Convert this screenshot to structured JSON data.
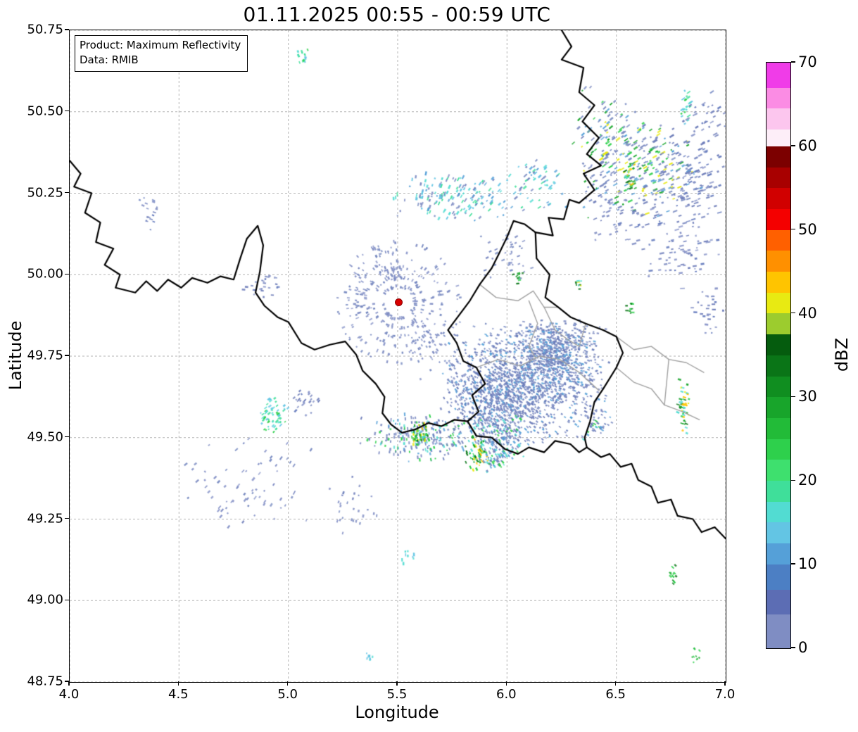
{
  "figure": {
    "title": "01.11.2025 00:55 - 00:59 UTC"
  },
  "annotation": {
    "line1": "Product: Maximum Reflectivity",
    "line2": "Data: RMIB"
  },
  "axes": {
    "x": {
      "label": "Longitude",
      "lim": [
        4.0,
        7.0
      ],
      "ticks": [
        {
          "value": 4.0,
          "label": "4.0"
        },
        {
          "value": 4.5,
          "label": "4.5"
        },
        {
          "value": 5.0,
          "label": "5.0"
        },
        {
          "value": 5.5,
          "label": "5.5"
        },
        {
          "value": 6.0,
          "label": "6.0"
        },
        {
          "value": 6.5,
          "label": "6.5"
        },
        {
          "value": 7.0,
          "label": "7.0"
        }
      ]
    },
    "y": {
      "label": "Latitude",
      "lim": [
        48.75,
        50.75
      ],
      "ticks": [
        {
          "value": 48.75,
          "label": "48.75"
        },
        {
          "value": 49.0,
          "label": "49.00"
        },
        {
          "value": 49.25,
          "label": "49.25"
        },
        {
          "value": 49.5,
          "label": "49.50"
        },
        {
          "value": 49.75,
          "label": "49.75"
        },
        {
          "value": 50.0,
          "label": "50.00"
        },
        {
          "value": 50.25,
          "label": "50.25"
        },
        {
          "value": 50.5,
          "label": "50.50"
        },
        {
          "value": 50.75,
          "label": "50.75"
        }
      ]
    },
    "grid_style": "dashed",
    "grid_color": "#b5b5b5"
  },
  "colorbar": {
    "label": "dBZ",
    "range": [
      0,
      70
    ],
    "ticks": [
      {
        "value": 0,
        "label": "0"
      },
      {
        "value": 10,
        "label": "10"
      },
      {
        "value": 20,
        "label": "20"
      },
      {
        "value": 30,
        "label": "30"
      },
      {
        "value": 40,
        "label": "40"
      },
      {
        "value": 50,
        "label": "50"
      },
      {
        "value": 60,
        "label": "60"
      },
      {
        "value": 70,
        "label": "70"
      }
    ],
    "segments": [
      {
        "from": 0,
        "to": 4,
        "color": "#7f8dc3"
      },
      {
        "from": 4,
        "to": 7,
        "color": "#5c6db4"
      },
      {
        "from": 7,
        "to": 10,
        "color": "#4c7fc4"
      },
      {
        "from": 10,
        "to": 12.5,
        "color": "#55a0d8"
      },
      {
        "from": 12.5,
        "to": 15,
        "color": "#63c5e4"
      },
      {
        "from": 15,
        "to": 17.5,
        "color": "#52dcd2"
      },
      {
        "from": 17.5,
        "to": 20,
        "color": "#3fdf9a"
      },
      {
        "from": 20,
        "to": 22.5,
        "color": "#3ee06e"
      },
      {
        "from": 22.5,
        "to": 25,
        "color": "#2ed04c"
      },
      {
        "from": 25,
        "to": 27.5,
        "color": "#22bb38"
      },
      {
        "from": 27.5,
        "to": 30,
        "color": "#18a52b"
      },
      {
        "from": 30,
        "to": 32.5,
        "color": "#108e20"
      },
      {
        "from": 32.5,
        "to": 35,
        "color": "#0a7517"
      },
      {
        "from": 35,
        "to": 37.5,
        "color": "#055c0e"
      },
      {
        "from": 37.5,
        "to": 40,
        "color": "#9ccc2e"
      },
      {
        "from": 40,
        "to": 42.5,
        "color": "#e8ea12"
      },
      {
        "from": 42.5,
        "to": 45,
        "color": "#ffc400"
      },
      {
        "from": 45,
        "to": 47.5,
        "color": "#ff9000"
      },
      {
        "from": 47.5,
        "to": 50,
        "color": "#ff6000"
      },
      {
        "from": 50,
        "to": 52.5,
        "color": "#f40000"
      },
      {
        "from": 52.5,
        "to": 55,
        "color": "#d10000"
      },
      {
        "from": 55,
        "to": 57.5,
        "color": "#a80000"
      },
      {
        "from": 57.5,
        "to": 60,
        "color": "#7c0000"
      },
      {
        "from": 60,
        "to": 62,
        "color": "#fdeef8"
      },
      {
        "from": 62,
        "to": 64.5,
        "color": "#fcc6ee"
      },
      {
        "from": 64.5,
        "to": 67,
        "color": "#fb8ce4"
      },
      {
        "from": 67,
        "to": 70,
        "color": "#f03ce8"
      }
    ]
  },
  "radar": {
    "marker": {
      "lon": 5.505,
      "lat": 49.915,
      "color": "#d80000"
    }
  },
  "palettes": {
    "slate": [
      "#7d8bc2",
      "#6e7db9",
      "#8b97ca",
      "#657bbd"
    ],
    "slateSparse": [
      "#7d8bc2",
      "#8b97ca",
      "#7487bf"
    ],
    "mass": [
      "#7487bf",
      "#6e7db9",
      "#8091c7",
      "#687cba",
      "#7d8bc2",
      "#55a0d8"
    ],
    "mixNorth": [
      "#7d8bc2",
      "#55a0d8",
      "#52dcd2",
      "#63c5e4",
      "#3fdf9a",
      "#7487bf"
    ],
    "neMix": [
      "#7d8bc2",
      "#6e7db9",
      "#55a0d8",
      "#2ed04c",
      "#18a52b",
      "#e8ea12",
      "#7487bf",
      "#7487bf"
    ],
    "swMix": [
      "#7487bf",
      "#6e7db9",
      "#55a0d8",
      "#52dcd2",
      "#2ed04c",
      "#7d8bc2"
    ],
    "greenYellow": [
      "#2ed04c",
      "#18a52b",
      "#e8ea12",
      "#ffc400",
      "#0a7517",
      "#52dcd2"
    ],
    "tealGreen": [
      "#52dcd2",
      "#3fdf9a",
      "#2ed04c",
      "#63c5e4"
    ],
    "green": [
      "#2ed04c",
      "#18a52b",
      "#0a7517"
    ],
    "cyan": [
      "#63c5e4",
      "#52dcd2"
    ]
  },
  "radar_echoes": {
    "clusters": [
      {
        "lon": 6.08,
        "lat": 49.67,
        "sx": 0.27,
        "sy": 0.13,
        "n": 1400,
        "palette": "mass",
        "len": 2
      },
      {
        "lon": 6.22,
        "lat": 49.77,
        "sx": 0.13,
        "sy": 0.07,
        "n": 450,
        "palette": "mass",
        "len": 2
      },
      {
        "lon": 5.93,
        "lat": 49.6,
        "sx": 0.12,
        "sy": 0.06,
        "n": 280,
        "palette": "mass",
        "len": 2
      },
      {
        "lon": 5.97,
        "lat": 49.5,
        "sx": 0.09,
        "sy": 0.05,
        "n": 140,
        "palette": "swMix",
        "len": 3
      },
      {
        "lon": 5.62,
        "lat": 49.5,
        "sx": 0.2,
        "sy": 0.05,
        "n": 230,
        "palette": "swMix",
        "len": 3
      },
      {
        "lon": 5.6,
        "lat": 49.51,
        "sx": 0.03,
        "sy": 0.03,
        "n": 55,
        "palette": "greenYellow",
        "len": 3
      },
      {
        "lon": 5.86,
        "lat": 49.45,
        "sx": 0.04,
        "sy": 0.04,
        "n": 60,
        "palette": "greenYellow",
        "len": 3
      },
      {
        "lon": 5.95,
        "lat": 49.43,
        "sx": 0.06,
        "sy": 0.03,
        "n": 60,
        "palette": "swMix",
        "len": 3
      },
      {
        "lon": 6.42,
        "lat": 49.55,
        "sx": 0.06,
        "sy": 0.04,
        "n": 30,
        "palette": "swMix",
        "len": 3
      },
      {
        "lon": 5.78,
        "lat": 50.24,
        "sx": 0.22,
        "sy": 0.05,
        "n": 170,
        "palette": "mixNorth",
        "len": 4
      },
      {
        "lon": 6.14,
        "lat": 50.28,
        "sx": 0.09,
        "sy": 0.06,
        "n": 60,
        "palette": "mixNorth",
        "len": 4
      },
      {
        "lon": 6.62,
        "lat": 50.33,
        "sx": 0.2,
        "sy": 0.11,
        "n": 280,
        "palette": "neMix",
        "len": 5
      },
      {
        "lon": 6.45,
        "lat": 50.43,
        "sx": 0.1,
        "sy": 0.11,
        "n": 90,
        "palette": "neMix",
        "len": 5
      },
      {
        "lon": 6.56,
        "lat": 50.3,
        "sx": 0.02,
        "sy": 0.03,
        "n": 28,
        "palette": "greenYellow",
        "len": 4
      },
      {
        "lon": 6.86,
        "lat": 50.28,
        "sx": 0.12,
        "sy": 0.08,
        "n": 90,
        "palette": "slate",
        "len": 5
      },
      {
        "lon": 6.82,
        "lat": 50.52,
        "sx": 0.02,
        "sy": 0.04,
        "n": 20,
        "palette": "tealGreen",
        "len": 4
      },
      {
        "lon": 6.9,
        "lat": 50.45,
        "sx": 0.08,
        "sy": 0.09,
        "n": 45,
        "palette": "slate",
        "len": 5
      },
      {
        "lon": 6.8,
        "lat": 50.08,
        "sx": 0.13,
        "sy": 0.1,
        "n": 80,
        "palette": "slate",
        "len": 5
      },
      {
        "lon": 6.55,
        "lat": 50.17,
        "sx": 0.14,
        "sy": 0.06,
        "n": 60,
        "palette": "slate",
        "len": 5
      },
      {
        "lon": 6.92,
        "lat": 49.88,
        "sx": 0.05,
        "sy": 0.06,
        "n": 28,
        "palette": "slate",
        "len": 4
      },
      {
        "lon": 6.81,
        "lat": 49.6,
        "sx": 0.02,
        "sy": 0.06,
        "n": 45,
        "palette": "greenYellow",
        "len": 3
      },
      {
        "lon": 6.57,
        "lat": 49.9,
        "sx": 0.02,
        "sy": 0.02,
        "n": 10,
        "palette": "green",
        "len": 3
      },
      {
        "lon": 6.05,
        "lat": 49.99,
        "sx": 0.02,
        "sy": 0.02,
        "n": 12,
        "palette": "green",
        "len": 3
      },
      {
        "lon": 6.32,
        "lat": 49.97,
        "sx": 0.015,
        "sy": 0.02,
        "n": 10,
        "palette": "greenYellow",
        "len": 3
      },
      {
        "lon": 6.0,
        "lat": 50.07,
        "sx": 0.09,
        "sy": 0.06,
        "n": 40,
        "palette": "slateSparse",
        "len": 3
      },
      {
        "type": "ring",
        "lon": 5.505,
        "lat": 49.915,
        "n": 300,
        "palette": "slateSparse",
        "len": 3
      },
      {
        "lon": 5.45,
        "lat": 50.03,
        "sx": 0.1,
        "sy": 0.04,
        "n": 40,
        "palette": "slateSparse",
        "len": 3
      },
      {
        "lon": 5.33,
        "lat": 49.92,
        "sx": 0.05,
        "sy": 0.04,
        "n": 22,
        "palette": "slateSparse",
        "len": 3
      },
      {
        "lon": 5.62,
        "lat": 49.77,
        "sx": 0.1,
        "sy": 0.08,
        "n": 45,
        "palette": "slateSparse",
        "len": 2
      },
      {
        "lon": 4.88,
        "lat": 49.97,
        "sx": 0.07,
        "sy": 0.03,
        "n": 26,
        "palette": "slate",
        "len": 3
      },
      {
        "lon": 4.37,
        "lat": 50.21,
        "sx": 0.04,
        "sy": 0.05,
        "n": 18,
        "palette": "slate",
        "len": 3
      },
      {
        "lon": 5.06,
        "lat": 50.67,
        "sx": 0.02,
        "sy": 0.03,
        "n": 14,
        "palette": "tealGreen",
        "len": 3
      },
      {
        "lon": 4.93,
        "lat": 49.57,
        "sx": 0.05,
        "sy": 0.04,
        "n": 60,
        "palette": "tealGreen",
        "len": 3
      },
      {
        "lon": 5.08,
        "lat": 49.61,
        "sx": 0.05,
        "sy": 0.03,
        "n": 26,
        "palette": "slate",
        "len": 3
      },
      {
        "lon": 4.82,
        "lat": 49.36,
        "sx": 0.2,
        "sy": 0.1,
        "n": 70,
        "palette": "slateSparse",
        "len": 4
      },
      {
        "lon": 5.3,
        "lat": 49.3,
        "sx": 0.1,
        "sy": 0.07,
        "n": 28,
        "palette": "slateSparse",
        "len": 3
      },
      {
        "lon": 5.55,
        "lat": 49.14,
        "sx": 0.03,
        "sy": 0.02,
        "n": 10,
        "palette": "cyan",
        "len": 3
      },
      {
        "lon": 5.37,
        "lat": 48.82,
        "sx": 0.02,
        "sy": 0.015,
        "n": 8,
        "palette": "cyan",
        "len": 3
      },
      {
        "lon": 6.86,
        "lat": 48.83,
        "sx": 0.02,
        "sy": 0.02,
        "n": 10,
        "palette": "green",
        "len": 3
      },
      {
        "lon": 6.76,
        "lat": 49.08,
        "sx": 0.015,
        "sy": 0.025,
        "n": 12,
        "palette": "green",
        "len": 3
      }
    ]
  }
}
